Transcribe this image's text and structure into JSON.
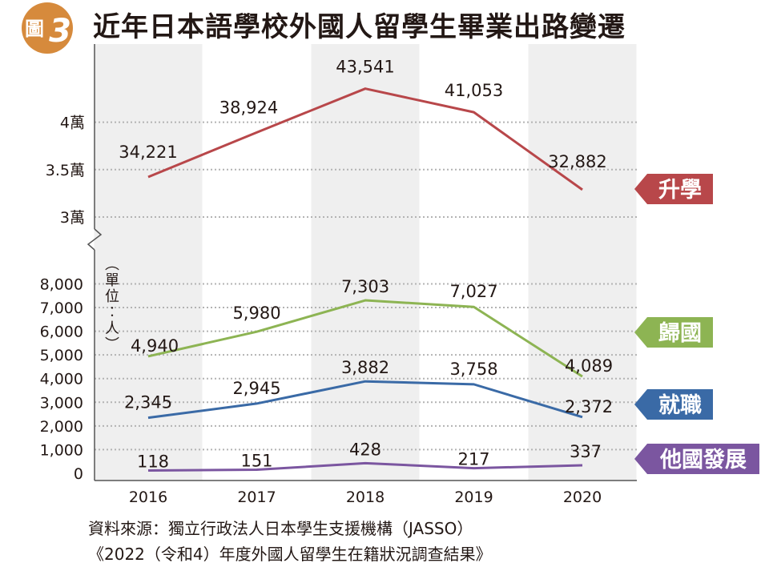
{
  "badge": {
    "label": "圖",
    "number": "3",
    "color": "#d68a3c"
  },
  "title": "近年日本語學校外國人留學生畢業出路變遷",
  "chart_data": {
    "type": "line",
    "x": [
      "2016",
      "2017",
      "2018",
      "2019",
      "2020"
    ],
    "unit_label": "（單位：人）",
    "upper_axis": {
      "ticks": [
        30000,
        35000,
        40000
      ],
      "tick_labels": [
        "3萬",
        "3.5萬",
        "4萬"
      ]
    },
    "lower_axis": {
      "ticks": [
        0,
        1000,
        2000,
        3000,
        4000,
        5000,
        6000,
        7000,
        8000
      ],
      "tick_labels": [
        "0",
        "1,000",
        "2,000",
        "3,000",
        "4,000",
        "5,000",
        "6,000",
        "7,000",
        "8,000"
      ]
    },
    "series": [
      {
        "name": "升學",
        "panel": "upper",
        "color": "#b8474a",
        "values": [
          34221,
          38924,
          43541,
          41053,
          32882
        ],
        "labels": [
          "34,221",
          "38,924",
          "43,541",
          "41,053",
          "32,882"
        ]
      },
      {
        "name": "歸國",
        "panel": "lower",
        "color": "#8db453",
        "values": [
          4940,
          5980,
          7303,
          7027,
          4089
        ],
        "labels": [
          "4,940",
          "5,980",
          "7,303",
          "7,027",
          "4,089"
        ]
      },
      {
        "name": "就職",
        "panel": "lower",
        "color": "#3a6aa6",
        "values": [
          2345,
          2945,
          3882,
          3758,
          2372
        ],
        "labels": [
          "2,345",
          "2,945",
          "3,882",
          "3,758",
          "2,372"
        ]
      },
      {
        "name": "他國發展",
        "panel": "lower",
        "color": "#7b56a0",
        "values": [
          118,
          151,
          428,
          217,
          337
        ],
        "labels": [
          "118",
          "151",
          "428",
          "217",
          "337"
        ]
      }
    ],
    "grid": "dotted"
  },
  "source": {
    "line1": "資料來源：獨立行政法人日本學生支援機構（JASSO）",
    "line2": "《2022（令和4）年度外國人留學生在籍狀況調查結果》"
  }
}
